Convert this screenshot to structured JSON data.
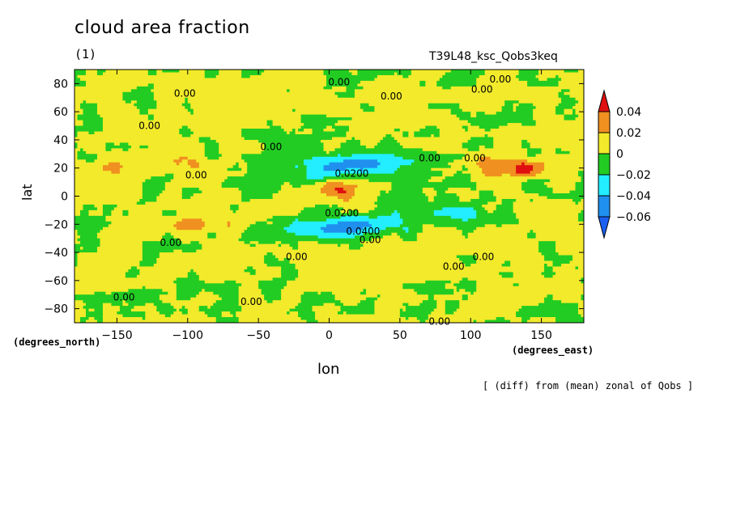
{
  "chart_data": {
    "type": "heatmap",
    "title": "cloud area fraction",
    "subtitle": "(1)",
    "experiment": "T39L48_ksc_Qobs3keq",
    "note": "[ (diff) from (mean) zonal of Qobs ]",
    "xlabel": "lon",
    "ylabel": "lat",
    "x_unit": "(degrees_east)",
    "y_unit": "(degrees_north)",
    "xlim": [
      -180,
      180
    ],
    "ylim": [
      -90,
      90
    ],
    "x_ticks": [
      -150,
      -100,
      -50,
      0,
      50,
      100,
      150
    ],
    "y_ticks": [
      -80,
      -60,
      -40,
      -20,
      0,
      20,
      40,
      60,
      80
    ],
    "colorbar": {
      "levels": [
        0.04,
        0.02,
        0,
        -0.02,
        -0.04,
        -0.06
      ],
      "labels": [
        "0.04",
        "0.02",
        "0",
        "−0.02",
        "−0.04",
        "−0.06"
      ],
      "colors": {
        "above_0.04": "#e01010",
        "0.02_to_0.04": "#f09020",
        "0_to_0.02": "#f2ea2a",
        "-0.02_to_0": "#22cc22",
        "-0.04_to_-0.02": "#22eeff",
        "-0.06_to_-0.04": "#2090ee",
        "below_-0.06": "#1a5ff0"
      }
    },
    "contour_labels": [
      {
        "text": "0.00",
        "lon": 7,
        "lat": 81
      },
      {
        "text": "0.00",
        "lon": 121,
        "lat": 83
      },
      {
        "text": "0.00",
        "lon": 108,
        "lat": 76
      },
      {
        "text": "0.00",
        "lon": -102,
        "lat": 73
      },
      {
        "text": "0.00",
        "lon": 44,
        "lat": 71
      },
      {
        "text": "0.00",
        "lon": -127,
        "lat": 50
      },
      {
        "text": "0.00",
        "lon": -41,
        "lat": 35
      },
      {
        "text": "0.00",
        "lon": 71,
        "lat": 27
      },
      {
        "text": "0.00",
        "lon": 103,
        "lat": 27
      },
      {
        "text": "0.00",
        "lon": -94,
        "lat": 15
      },
      {
        "text": "0.0200",
        "lon": 16,
        "lat": 16
      },
      {
        "text": "0.0200",
        "lon": 9,
        "lat": -12
      },
      {
        "text": "0.0400",
        "lon": 24,
        "lat": -25
      },
      {
        "text": "0.00",
        "lon": 29,
        "lat": -31
      },
      {
        "text": "0.00",
        "lon": -112,
        "lat": -33
      },
      {
        "text": "0.00",
        "lon": -23,
        "lat": -43
      },
      {
        "text": "0.00",
        "lon": 88,
        "lat": -50
      },
      {
        "text": "0.00",
        "lon": 109,
        "lat": -43
      },
      {
        "text": "0.00",
        "lon": -145,
        "lat": -72
      },
      {
        "text": "0.00",
        "lon": -55,
        "lat": -75
      },
      {
        "text": "0.00",
        "lon": 78,
        "lat": -89
      }
    ]
  }
}
